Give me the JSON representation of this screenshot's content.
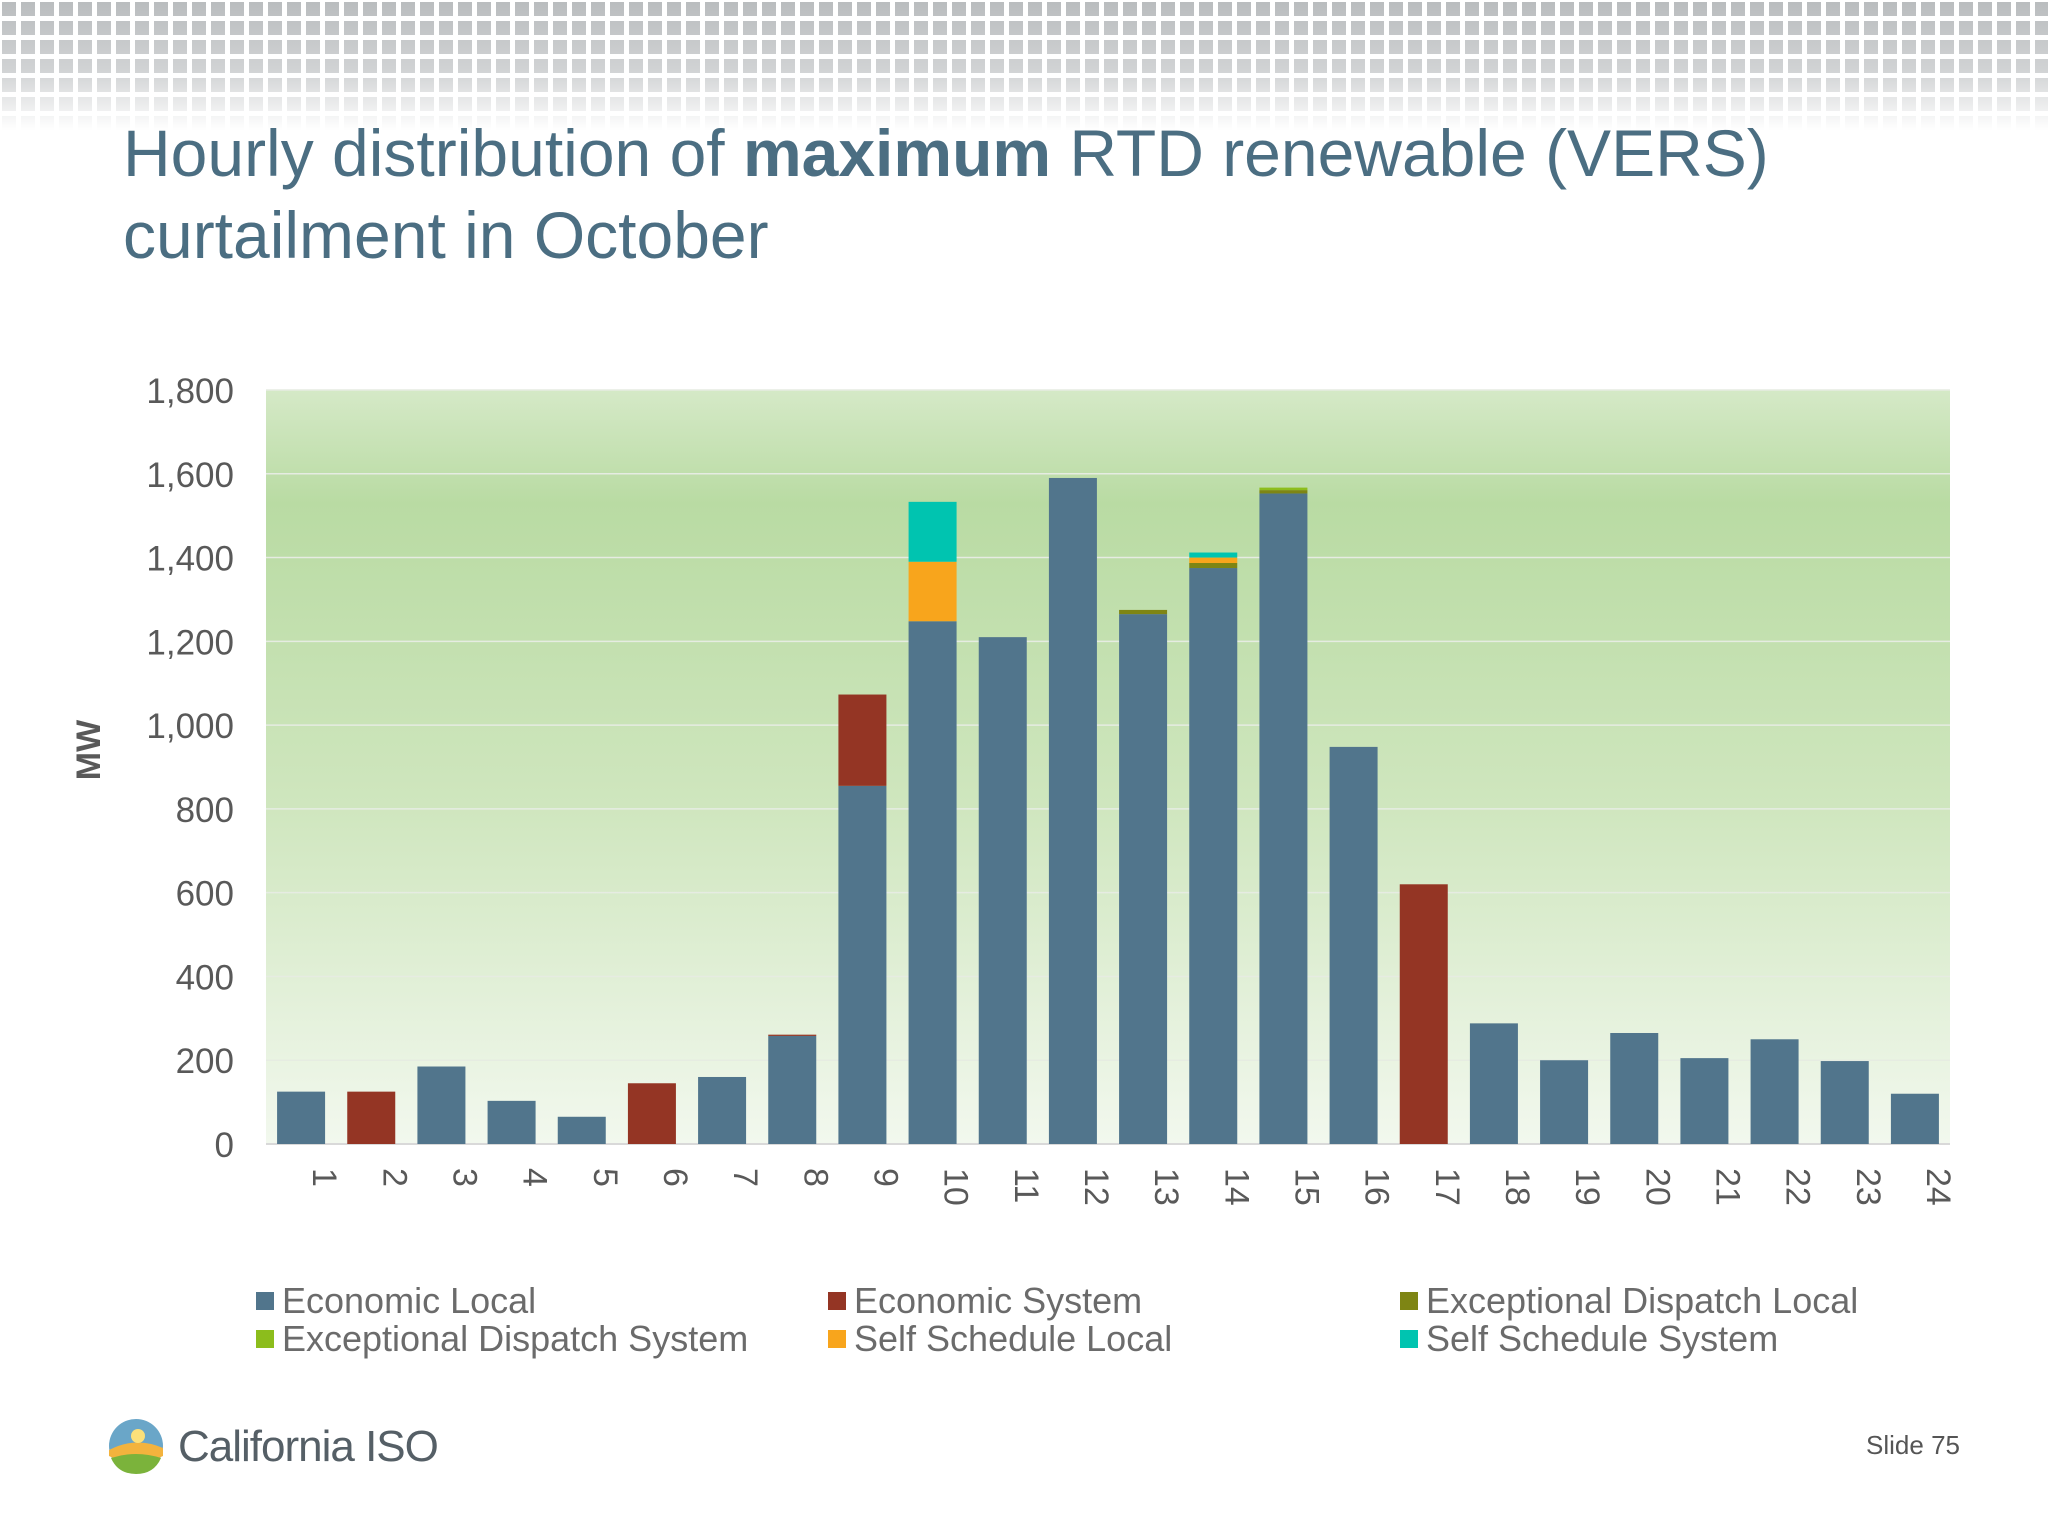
{
  "title": {
    "part1": "Hourly distribution of ",
    "bold": "maximum",
    "part2": " RTD renewable (VERS)",
    "line2": "curtailment in October"
  },
  "footer": {
    "logo_text": "California ISO",
    "slide_number": "Slide 75"
  },
  "chart_data": {
    "type": "bar",
    "stacked": true,
    "ylabel": "MW",
    "xlabel": "",
    "ylim": [
      0,
      1800
    ],
    "yticks": [
      0,
      200,
      400,
      600,
      800,
      1000,
      1200,
      1400,
      1600,
      1800
    ],
    "ytick_labels": [
      "0",
      "200",
      "400",
      "600",
      "800",
      "1,000",
      "1,200",
      "1,400",
      "1,600",
      "1,800"
    ],
    "categories": [
      "1",
      "2",
      "3",
      "4",
      "5",
      "6",
      "7",
      "8",
      "9",
      "10",
      "11",
      "12",
      "13",
      "14",
      "15",
      "16",
      "17",
      "18",
      "19",
      "20",
      "21",
      "22",
      "23",
      "24"
    ],
    "series": [
      {
        "name": "Economic Local",
        "color": "#51758c",
        "values": [
          125,
          0,
          185,
          103,
          65,
          0,
          160,
          258,
          855,
          1248,
          1210,
          1590,
          1265,
          1375,
          1553,
          948,
          0,
          288,
          200,
          265,
          205,
          250,
          198,
          120
        ]
      },
      {
        "name": "Economic System",
        "color": "#943524",
        "values": [
          0,
          125,
          0,
          0,
          0,
          145,
          0,
          3,
          218,
          0,
          0,
          0,
          0,
          0,
          0,
          0,
          620,
          0,
          0,
          0,
          0,
          0,
          0,
          0
        ]
      },
      {
        "name": "Exceptional Dispatch Local",
        "color": "#7e8514",
        "values": [
          0,
          0,
          0,
          0,
          0,
          0,
          0,
          0,
          0,
          0,
          0,
          0,
          10,
          12,
          8,
          0,
          0,
          0,
          0,
          0,
          0,
          0,
          0,
          0
        ]
      },
      {
        "name": "Exceptional Dispatch System",
        "color": "#8cbd1c",
        "values": [
          0,
          0,
          0,
          0,
          0,
          0,
          0,
          0,
          0,
          0,
          0,
          0,
          0,
          0,
          6,
          0,
          0,
          0,
          0,
          0,
          0,
          0,
          0,
          0
        ]
      },
      {
        "name": "Self Schedule Local",
        "color": "#f8a51c",
        "values": [
          0,
          0,
          0,
          0,
          0,
          0,
          0,
          0,
          0,
          142,
          0,
          0,
          0,
          13,
          0,
          0,
          0,
          0,
          0,
          0,
          0,
          0,
          0,
          0
        ]
      },
      {
        "name": "Self Schedule System",
        "color": "#00c4b0",
        "values": [
          0,
          0,
          0,
          0,
          0,
          0,
          0,
          0,
          0,
          143,
          0,
          0,
          0,
          12,
          0,
          0,
          0,
          0,
          0,
          0,
          0,
          0,
          0,
          0
        ]
      }
    ],
    "grid": true,
    "legend_position": "bottom",
    "legend_columns": 3
  }
}
